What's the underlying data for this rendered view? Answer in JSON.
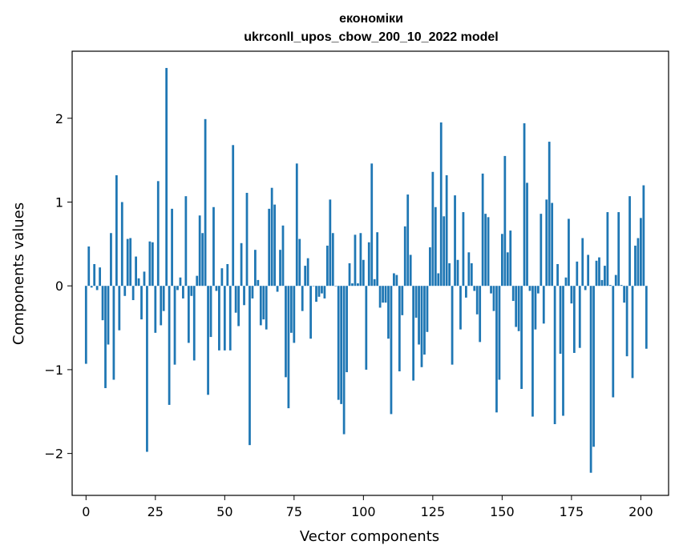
{
  "chart_data": {
    "type": "bar",
    "title_line1": "економіки",
    "title_line2": "ukrconll_upos_cbow_200_10_2022 model",
    "xlabel": "Vector components",
    "ylabel": "Components values",
    "xlim": [
      -5,
      210
    ],
    "ylim": [
      -2.5,
      2.8
    ],
    "xticks": [
      0,
      25,
      50,
      75,
      100,
      125,
      150,
      175,
      200
    ],
    "yticks": [
      -2,
      -1,
      0,
      1,
      2
    ],
    "ytick_labels": [
      "−2",
      "−1",
      "0",
      "1",
      "2"
    ],
    "grid": false,
    "bar_color": "#1f77b4",
    "values": [
      -0.93,
      0.47,
      -0.02,
      0.26,
      -0.05,
      0.22,
      -0.41,
      -1.22,
      -0.7,
      0.63,
      -1.12,
      1.32,
      -0.53,
      1.0,
      -0.12,
      0.56,
      0.57,
      -0.17,
      0.35,
      0.09,
      -0.4,
      0.17,
      -1.98,
      0.53,
      0.52,
      -0.56,
      1.25,
      -0.47,
      -0.3,
      2.6,
      -1.42,
      0.92,
      -0.94,
      -0.05,
      0.1,
      -0.15,
      1.07,
      -0.68,
      -0.12,
      -0.89,
      0.12,
      0.84,
      0.63,
      1.99,
      -1.3,
      -0.61,
      0.94,
      -0.06,
      -0.77,
      0.21,
      -0.77,
      0.26,
      -0.77,
      1.68,
      -0.32,
      -0.48,
      0.51,
      -0.23,
      1.11,
      -1.9,
      -0.15,
      0.43,
      0.07,
      -0.47,
      -0.4,
      -0.52,
      0.92,
      1.17,
      0.97,
      -0.07,
      0.43,
      0.72,
      -1.09,
      -1.46,
      -0.56,
      -0.68,
      1.46,
      0.56,
      -0.3,
      0.24,
      0.33,
      -0.63,
      0.0,
      -0.19,
      -0.13,
      -0.09,
      -0.15,
      0.48,
      1.03,
      0.63,
      0.0,
      -1.36,
      -1.41,
      -1.77,
      -1.03,
      0.27,
      0.03,
      0.61,
      0.03,
      0.63,
      0.31,
      -1.0,
      0.52,
      1.46,
      0.08,
      0.64,
      -0.26,
      -0.2,
      -0.2,
      -0.63,
      -1.53,
      0.15,
      0.13,
      -1.02,
      -0.35,
      0.71,
      1.09,
      0.37,
      -1.13,
      -0.38,
      -0.7,
      -0.97,
      -0.82,
      -0.55,
      0.46,
      1.36,
      0.94,
      0.15,
      1.95,
      0.83,
      1.32,
      0.27,
      -0.94,
      1.08,
      0.31,
      -0.52,
      0.88,
      -0.14,
      0.4,
      0.27,
      -0.06,
      -0.34,
      -0.67,
      1.34,
      0.86,
      0.82,
      -0.09,
      -0.3,
      -1.51,
      -1.12,
      0.62,
      1.55,
      0.4,
      0.66,
      -0.18,
      -0.49,
      -0.54,
      -1.23,
      1.94,
      1.23,
      -0.06,
      -1.56,
      -0.52,
      -0.09,
      0.86,
      -0.45,
      1.03,
      1.72,
      0.99,
      -1.65,
      0.26,
      -0.81,
      -1.55,
      0.1,
      0.8,
      -0.21,
      -0.8,
      0.29,
      -0.74,
      0.57,
      -0.05,
      0.37,
      -2.23,
      -1.92,
      0.3,
      0.34,
      0.07,
      0.24,
      0.88,
      0.01,
      -1.33,
      0.13,
      0.88,
      0.01,
      -0.2,
      -0.84,
      1.07,
      -1.1,
      0.48,
      0.57,
      0.81,
      1.2,
      -0.75
    ]
  }
}
